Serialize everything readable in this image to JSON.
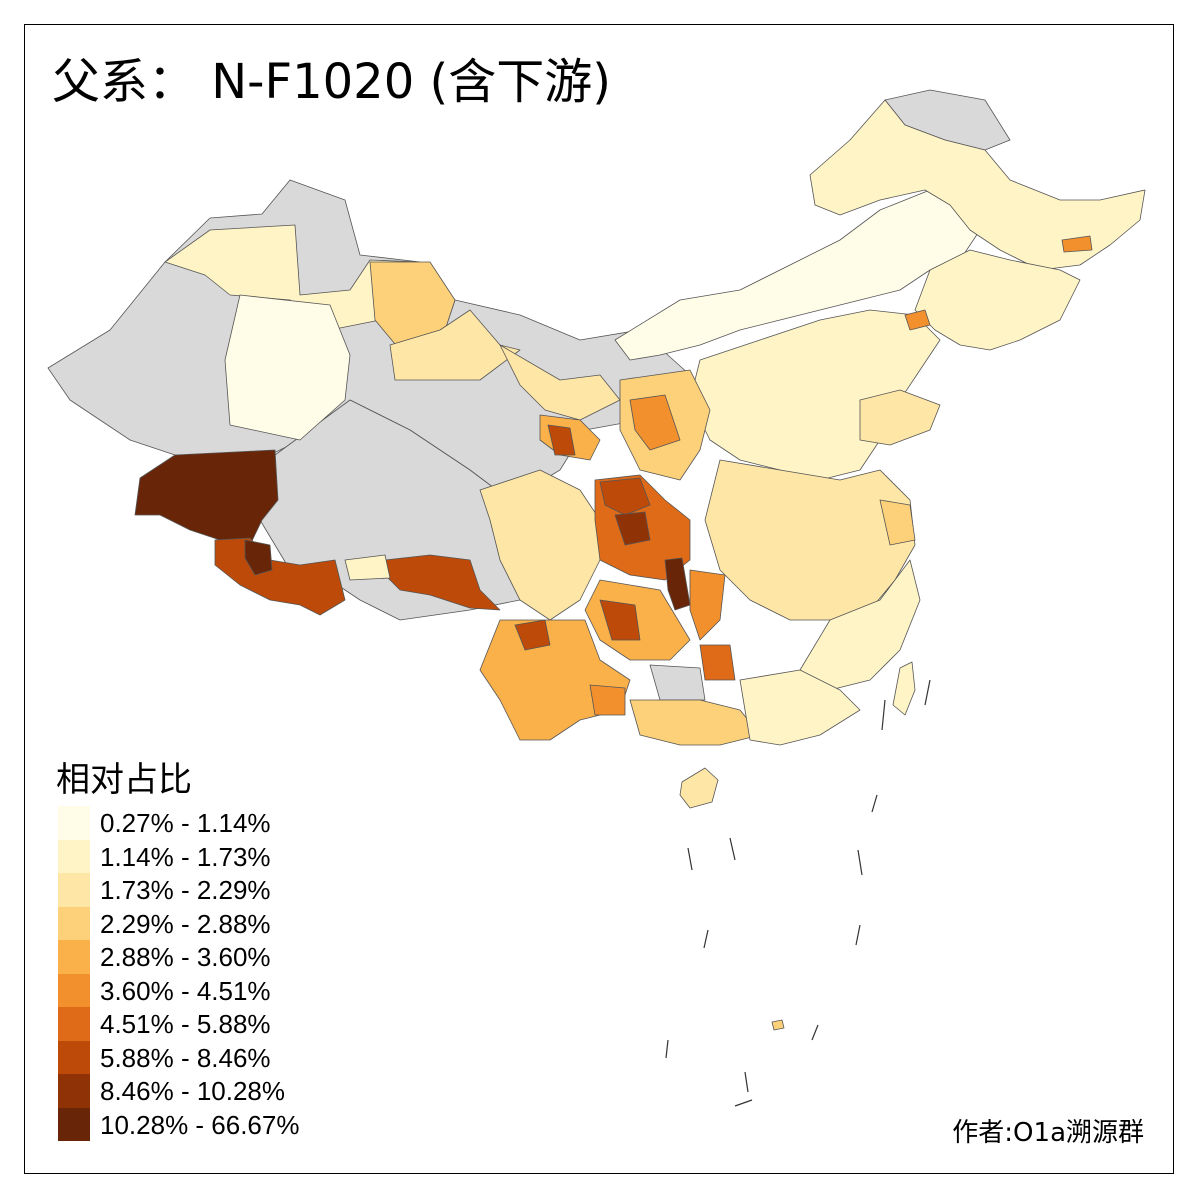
{
  "title": "父系： N-F1020 (含下游)",
  "legend": {
    "title": "相对占比",
    "classes": [
      {
        "label": "0.27% - 1.14%",
        "color": "#fffde8"
      },
      {
        "label": "1.14% - 1.73%",
        "color": "#fff4c6"
      },
      {
        "label": "1.73% - 2.29%",
        "color": "#fee6a6"
      },
      {
        "label": "2.29% - 2.88%",
        "color": "#fdd07a"
      },
      {
        "label": "2.88% - 3.60%",
        "color": "#fbb14a"
      },
      {
        "label": "3.60% - 4.51%",
        "color": "#f2902e"
      },
      {
        "label": "4.51% - 5.88%",
        "color": "#df6a17"
      },
      {
        "label": "5.88% - 8.46%",
        "color": "#bd4a08"
      },
      {
        "label": "8.46% - 10.28%",
        "color": "#8f3306"
      },
      {
        "label": "10.28% - 66.67%",
        "color": "#682508"
      }
    ]
  },
  "nodata_color": "#d9d9d9",
  "credit": "作者:O1a溯源群"
}
